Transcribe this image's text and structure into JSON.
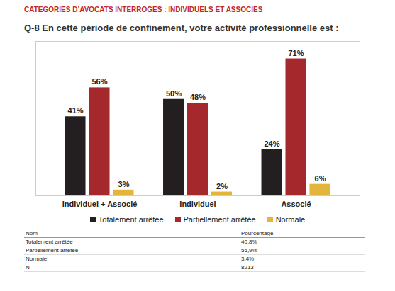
{
  "header": "CATEGORIES D’AVOCATS INTERROGES : INDIVIDUELS ET ASSOCIES",
  "chart_data": {
    "type": "bar",
    "title": "Q-8 En cette période de confinement, votre activité professionnelle est :",
    "categories": [
      "Individuel + Associé",
      "Individuel",
      "Associé"
    ],
    "series": [
      {
        "name": "Totalement arrêtée",
        "color": "#231f20",
        "values": [
          41,
          50,
          24
        ],
        "value_labels": [
          "41%",
          "50%",
          "24%"
        ]
      },
      {
        "name": "Partiellement arrêtée",
        "color": "#a5282c",
        "values": [
          56,
          48,
          71
        ],
        "value_labels": [
          "56%",
          "48%",
          "71%"
        ]
      },
      {
        "name": "Normale",
        "color": "#e3b53c",
        "values": [
          3,
          2,
          6
        ],
        "value_labels": [
          "3%",
          "2%",
          "6%"
        ]
      }
    ],
    "ylim": [
      0,
      80
    ],
    "yticks": [],
    "grid": false,
    "legend": "bottom",
    "data_labels": true,
    "tick_labels": "x"
  },
  "table": {
    "columns": [
      "Nom",
      "Pourcentage"
    ],
    "rows": [
      [
        "Totalement arrêtée",
        "40,8%"
      ],
      [
        "Partiellement arrêtée",
        "55,9%"
      ],
      [
        "Normale",
        "3,4%"
      ],
      [
        "N",
        "8213"
      ]
    ]
  }
}
